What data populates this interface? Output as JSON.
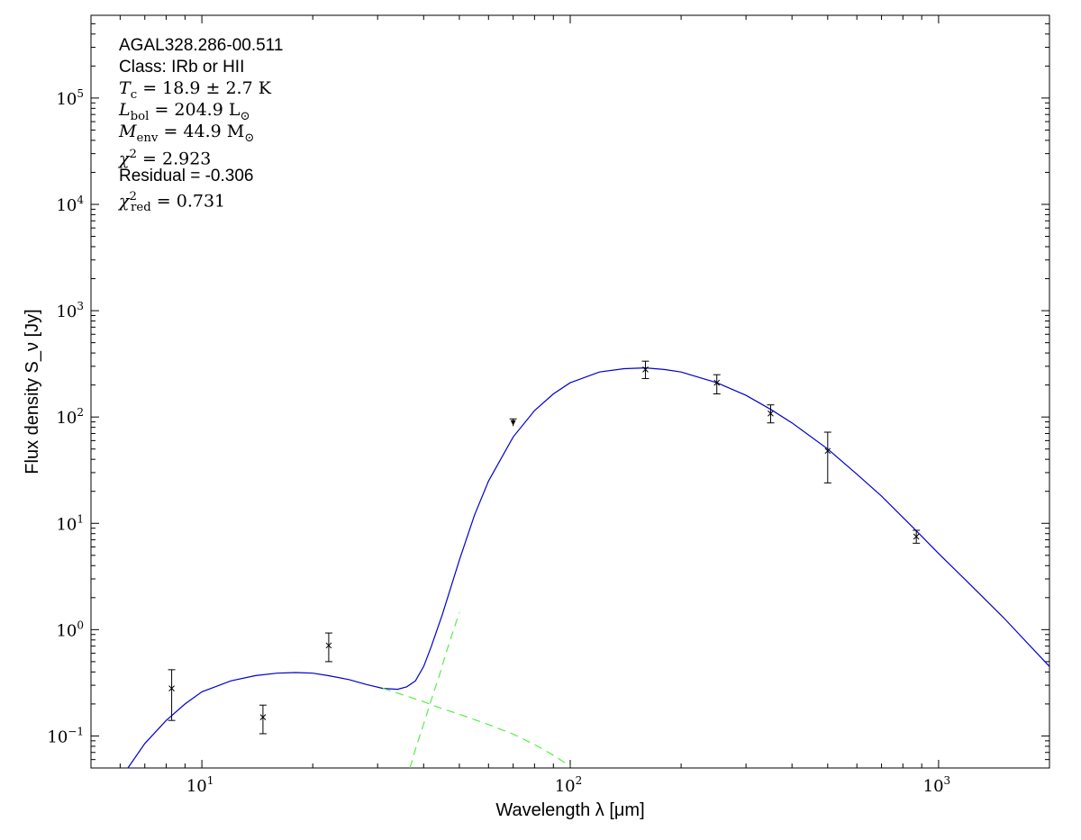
{
  "chart_data": {
    "type": "scatter",
    "source_name": "AGAL328.286-00.511",
    "xlabel": "Wavelength λ [μm]",
    "ylabel": "Flux density S_ν [Jy]",
    "xscale": "log",
    "yscale": "log",
    "xlim": [
      5,
      2000
    ],
    "ylim": [
      0.05,
      600000
    ],
    "xticks": [
      {
        "value": 10,
        "base": "10",
        "exp": "1"
      },
      {
        "value": 100,
        "base": "10",
        "exp": "2"
      },
      {
        "value": 1000,
        "base": "10",
        "exp": "3"
      }
    ],
    "yticks": [
      {
        "value": 0.1,
        "base": "10",
        "exp": "−1"
      },
      {
        "value": 1,
        "base": "10",
        "exp": "0"
      },
      {
        "value": 10,
        "base": "10",
        "exp": "1"
      },
      {
        "value": 100,
        "base": "10",
        "exp": "2"
      },
      {
        "value": 1000,
        "base": "10",
        "exp": "3"
      },
      {
        "value": 10000,
        "base": "10",
        "exp": "4"
      },
      {
        "value": 100000,
        "base": "10",
        "exp": "5"
      }
    ],
    "annotations": {
      "source": "AGAL328.286-00.511",
      "class_line": "Class: IRb or HII",
      "tc_value": "= 18.9 ± 2.7 K",
      "lbol_value": "= 204.9 L",
      "menv_value": "= 44.9 M",
      "chi2_value": "= 2.923",
      "residual_line": "Residual = -0.306",
      "chi2red_value": "= 0.731"
    },
    "points": [
      {
        "x": 8.28,
        "y": 0.28,
        "ylo": 0.14,
        "yhi": 0.42,
        "kind": "detection"
      },
      {
        "x": 14.65,
        "y": 0.15,
        "ylo": 0.105,
        "yhi": 0.195,
        "kind": "detection"
      },
      {
        "x": 22.1,
        "y": 0.71,
        "ylo": 0.5,
        "yhi": 0.93,
        "kind": "detection"
      },
      {
        "x": 70,
        "y": 88,
        "ylo": 82,
        "yhi": 96,
        "kind": "upper_limit"
      },
      {
        "x": 160,
        "y": 280,
        "ylo": 230,
        "yhi": 335,
        "kind": "detection"
      },
      {
        "x": 250,
        "y": 210,
        "ylo": 165,
        "yhi": 250,
        "kind": "detection"
      },
      {
        "x": 350,
        "y": 108,
        "ylo": 88,
        "yhi": 130,
        "kind": "detection"
      },
      {
        "x": 500,
        "y": 48,
        "ylo": 24,
        "yhi": 72,
        "kind": "detection"
      },
      {
        "x": 870,
        "y": 7.5,
        "ylo": 6.5,
        "yhi": 8.6,
        "kind": "detection"
      }
    ],
    "series": [
      {
        "style": "total_model",
        "color": "#0000cc",
        "x": [
          6.3,
          7.0,
          8.0,
          9.0,
          10.0,
          12.0,
          14.0,
          16.0,
          18.0,
          20.0,
          22.0,
          25.0,
          28.0,
          31.0,
          34.0,
          36.0,
          38.0,
          40.0,
          42.0,
          45.0,
          50.0,
          55.0,
          60.0,
          70.0,
          80.0,
          90.0,
          100.0,
          120.0,
          140.0,
          160.0,
          180.0,
          200.0,
          250.0,
          300.0,
          350.0,
          400.0,
          500.0,
          600.0,
          700.0,
          870.0,
          1000.0,
          1200.0,
          1500.0,
          2000.0
        ],
        "y": [
          0.05,
          0.085,
          0.14,
          0.2,
          0.26,
          0.33,
          0.37,
          0.39,
          0.395,
          0.39,
          0.37,
          0.34,
          0.305,
          0.28,
          0.275,
          0.29,
          0.33,
          0.45,
          0.7,
          1.4,
          4.5,
          12.0,
          25.0,
          65.0,
          115.0,
          165.0,
          210.0,
          265.0,
          285.0,
          290.0,
          280.0,
          265.0,
          210.0,
          160.0,
          118.0,
          88.0,
          50.0,
          29.0,
          18.0,
          8.5,
          5.2,
          2.8,
          1.3,
          0.45
        ]
      },
      {
        "style": "warm_component",
        "color": "#55ee44",
        "x": [
          31.0,
          35.0,
          40.0,
          45.0,
          50.0,
          60.0,
          70.0,
          80.0,
          90.0,
          100.0
        ],
        "y": [
          0.28,
          0.245,
          0.21,
          0.18,
          0.16,
          0.128,
          0.104,
          0.083,
          0.066,
          0.052
        ]
      },
      {
        "style": "cold_component",
        "color": "#55ee44",
        "x": [
          36.7,
          38.0,
          40.0,
          42.0,
          44.0,
          46.0,
          48.0,
          50.0
        ],
        "y": [
          0.05,
          0.075,
          0.13,
          0.22,
          0.36,
          0.6,
          0.95,
          1.45
        ]
      }
    ]
  }
}
